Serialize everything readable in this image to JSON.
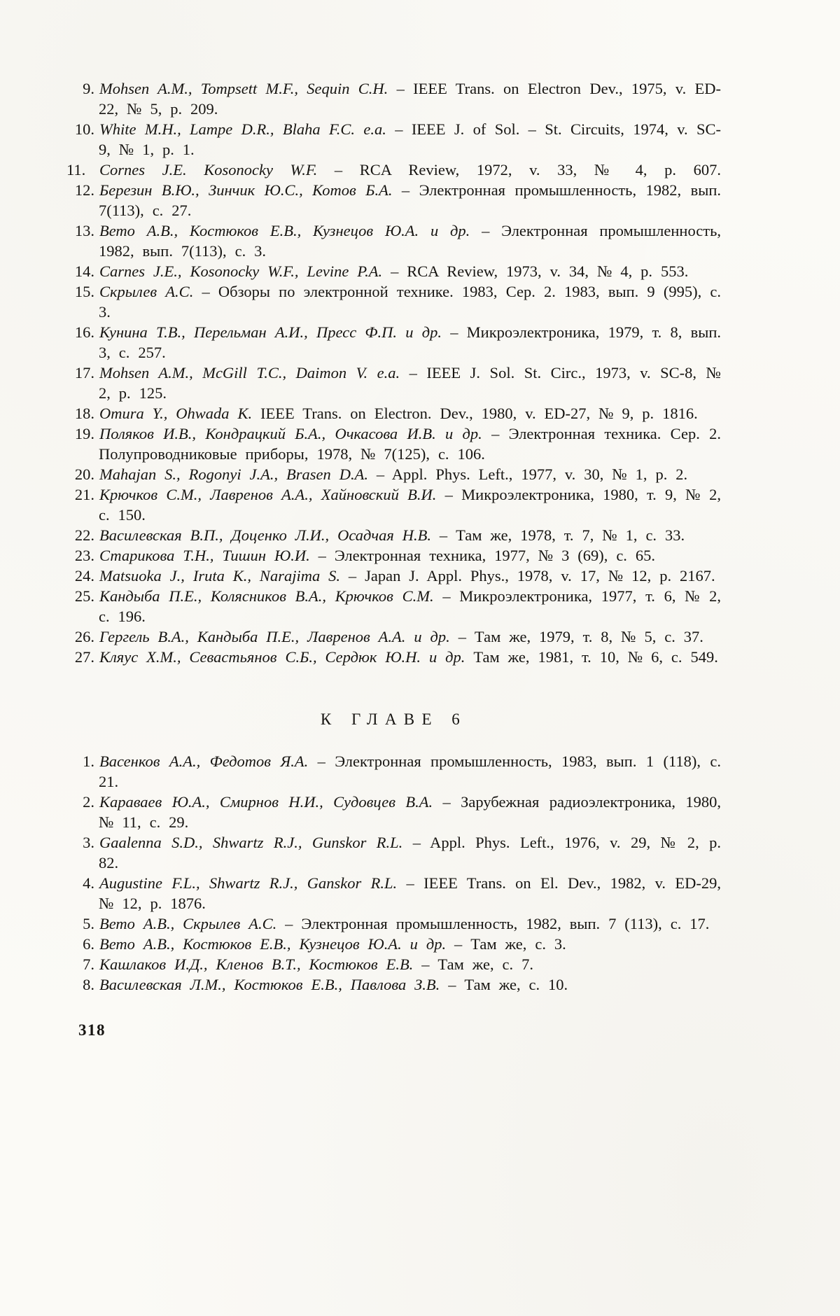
{
  "page_number": "318",
  "lists": [
    {
      "name": "chapter5-references-continued",
      "heading": "",
      "items": [
        {
          "num": "9.",
          "authors": "Mohsen A.M., Tompsett M.F., Sequin C.H.",
          "text": "– IEEE Trans. on Electron Dev., 1975, v. ED-22, № 5, p. 209."
        },
        {
          "num": "10.",
          "authors": "White M.H., Lampe D.R., Blaha F.C. e.a.",
          "text": "– IEEE J. of Sol. – St. Circuits, 1974, v. SC-9, № 1, p. 1."
        },
        {
          "num": "11.",
          "authors": "Cornes J.E. Kosonocky W.F.",
          "text": "– RCA Review, 1972, v. 33, № 4, p. 607."
        },
        {
          "num": "12.",
          "authors": "Березин В.Ю., Зинчик Ю.С., Котов Б.А.",
          "text": "– Электронная промышленность, 1982, вып. 7(113), с. 27."
        },
        {
          "num": "13.",
          "authors": "Вето А.В., Костюков Е.В., Кузнецов Ю.А. и др.",
          "text": "– Электронная промышленность, 1982, вып. 7(113), с. 3."
        },
        {
          "num": "14.",
          "authors": "Carnes J.E., Kosonocky W.F., Levine P.A.",
          "text": "– RCA Review, 1973, v. 34, № 4, p. 553."
        },
        {
          "num": "15.",
          "authors": "Скрылев А.С.",
          "text": "– Обзоры по электронной технике. 1983, Сер. 2. 1983, вып. 9 (995), с. 3."
        },
        {
          "num": "16.",
          "authors": "Кунина Т.В., Перельман А.И., Пресс Ф.П. и др.",
          "text": "– Микроэлектроника, 1979, т. 8, вып. 3, с. 257."
        },
        {
          "num": "17.",
          "authors": "Mohsen A.M., McGill T.C., Daimon V. e.a.",
          "text": "– IEEE J. Sol. St. Circ., 1973, v. SC-8, № 2, p. 125."
        },
        {
          "num": "18.",
          "authors": "Omura Y., Ohwada K.",
          "text": "IEEE Trans. on Electron. Dev., 1980, v. ED-27, № 9, p. 1816."
        },
        {
          "num": "19.",
          "authors": "Поляков И.В., Кондрацкий Б.А., Очкасова И.В. и др.",
          "text": "– Электронная техника. Сер. 2. Полупроводниковые приборы, 1978, № 7(125), с. 106."
        },
        {
          "num": "20.",
          "authors": "Mahajan S., Rogonyi J.A., Brasen D.A.",
          "text": "– Appl. Phys. Left., 1977, v. 30, № 1, p. 2."
        },
        {
          "num": "21.",
          "authors": "Крючков С.М., Лавренов А.А., Хайновский В.И.",
          "text": "– Микроэлектроника, 1980, т. 9, № 2, с. 150."
        },
        {
          "num": "22.",
          "authors": "Василевская В.П., Доценко Л.И., Осадчая Н.В.",
          "text": "– Там же, 1978, т. 7, № 1, с. 33."
        },
        {
          "num": "23.",
          "authors": "Старикова Т.Н., Тишин Ю.И.",
          "text": "– Электронная техника, 1977, № 3 (69), с. 65."
        },
        {
          "num": "24.",
          "authors": "Matsuoka J., Iruta K., Narajima S.",
          "text": "– Japan J. Appl. Phys., 1978, v. 17, № 12, p. 2167."
        },
        {
          "num": "25.",
          "authors": "Кандыба П.Е., Колясников В.А., Крючков С.М.",
          "text": "– Микроэлектроника, 1977, т. 6, № 2, с. 196."
        },
        {
          "num": "26.",
          "authors": "Гергель В.А., Кандыба П.Е., Лавренов А.А. и др.",
          "text": "– Там же, 1979, т. 8, № 5, с. 37."
        },
        {
          "num": "27.",
          "authors": "Кляус Х.М., Севастьянов С.Б., Сердюк Ю.Н. и др.",
          "text": "Там же, 1981, т. 10, № 6, с. 549."
        }
      ]
    },
    {
      "name": "chapter6-references",
      "heading": "К ГЛАВЕ 6",
      "items": [
        {
          "num": "1.",
          "authors": "Васенков А.А., Федотов Я.А.",
          "text": "– Электронная промышленность, 1983, вып. 1 (118), с. 21."
        },
        {
          "num": "2.",
          "authors": "Караваев Ю.А., Смирнов Н.И., Судовцев В.А.",
          "text": "– Зарубежная радиоэлектроника, 1980, № 11, с. 29."
        },
        {
          "num": "3.",
          "authors": "Gaalenna S.D., Shwartz R.J., Gunskor R.L.",
          "text": "– Appl. Phys. Left., 1976, v. 29, № 2, p. 82."
        },
        {
          "num": "4.",
          "authors": "Augustine F.L., Shwartz R.J., Ganskor R.L.",
          "text": "– IEEE Trans. on El. Dev., 1982, v. ED-29, № 12, p. 1876."
        },
        {
          "num": "5.",
          "authors": "Вето А.В., Скрылев А.С.",
          "text": "– Электронная промышленность, 1982, вып. 7 (113), с. 17."
        },
        {
          "num": "6.",
          "authors": "Вето А.В., Костюков Е.В., Кузнецов Ю.А. и др.",
          "text": "– Там же, с. 3."
        },
        {
          "num": "7.",
          "authors": "Кашлаков И.Д., Кленов В.Т., Костюков Е.В.",
          "text": "– Там же, с. 7."
        },
        {
          "num": "8.",
          "authors": "Василевская Л.М., Костюков Е.В., Павлова З.В.",
          "text": "– Там же, с. 10."
        }
      ]
    }
  ]
}
